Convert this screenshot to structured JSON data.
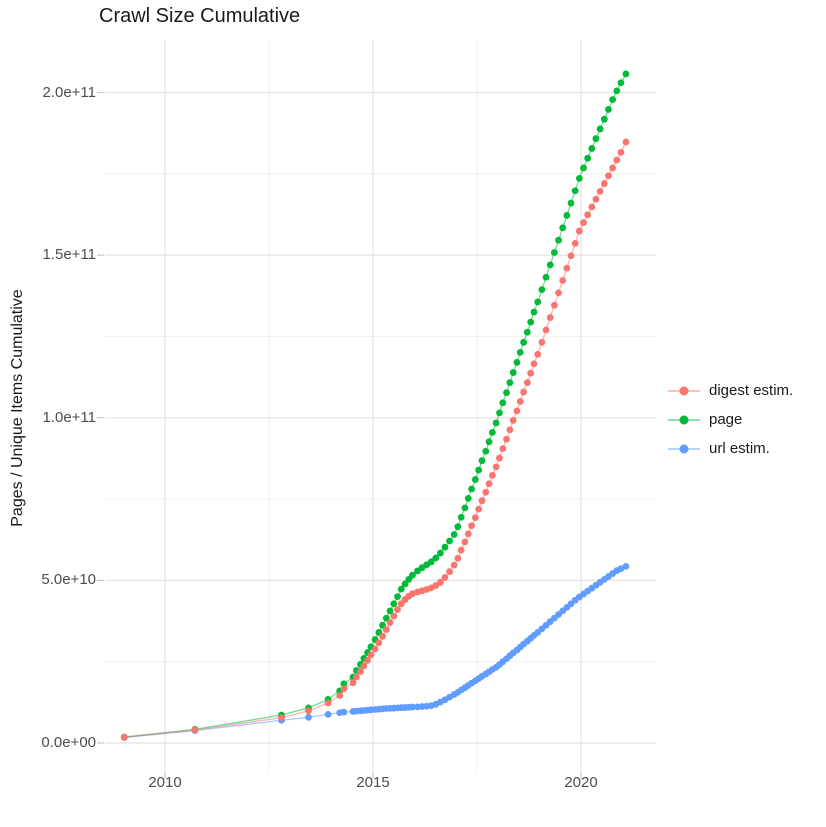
{
  "chart_data": {
    "type": "scatter",
    "title": "Crawl Size Cumulative",
    "xlabel": "",
    "ylabel": "Pages / Unique Items Cumulative",
    "value_scale": "1e9",
    "grid": "major+minor",
    "legend_position": "right",
    "x_ticks": [
      {
        "value": 2010,
        "label": "2010"
      },
      {
        "value": 2015,
        "label": "2015"
      },
      {
        "value": 2020,
        "label": "2020"
      }
    ],
    "y_ticks": [
      {
        "value": 0,
        "label": "0.0e+00"
      },
      {
        "value": 50,
        "label": "5.0e+10"
      },
      {
        "value": 100,
        "label": "1.0e+11"
      },
      {
        "value": 150,
        "label": "1.5e+11"
      },
      {
        "value": 200,
        "label": "2.0e+11"
      }
    ],
    "x_minor_ticks": [
      2012.5,
      2017.5
    ],
    "y_minor_ticks": [
      25,
      75,
      125,
      175
    ],
    "xlim": [
      2008.6,
      2021.8
    ],
    "ylim": [
      -9,
      216
    ],
    "series": [
      {
        "name": "digest estim.",
        "color": "#F8766D",
        "points": [
          [
            2009.02,
            1.8
          ],
          [
            2010.72,
            4.0
          ],
          [
            2012.8,
            7.8
          ],
          [
            2013.45,
            9.9
          ],
          [
            2013.92,
            12.3
          ],
          [
            2014.2,
            14.6
          ],
          [
            2014.3,
            16.6
          ],
          [
            2014.52,
            18.5
          ],
          [
            2014.6,
            20.3
          ],
          [
            2014.7,
            22.0
          ],
          [
            2014.78,
            23.7
          ],
          [
            2014.87,
            25.4
          ],
          [
            2014.95,
            27.1
          ],
          [
            2015.05,
            28.9
          ],
          [
            2015.14,
            30.8
          ],
          [
            2015.23,
            32.8
          ],
          [
            2015.32,
            34.9
          ],
          [
            2015.41,
            37.0
          ],
          [
            2015.5,
            39.0
          ],
          [
            2015.59,
            41.0
          ],
          [
            2015.68,
            42.8
          ],
          [
            2015.77,
            44.1
          ],
          [
            2015.86,
            45.1
          ],
          [
            2015.95,
            45.9
          ],
          [
            2016.07,
            46.4
          ],
          [
            2016.18,
            46.8
          ],
          [
            2016.29,
            47.2
          ],
          [
            2016.4,
            47.7
          ],
          [
            2016.51,
            48.4
          ],
          [
            2016.62,
            49.4
          ],
          [
            2016.73,
            50.9
          ],
          [
            2016.84,
            52.7
          ],
          [
            2016.95,
            54.7
          ],
          [
            2017.04,
            56.8
          ],
          [
            2017.12,
            59.3
          ],
          [
            2017.21,
            61.8
          ],
          [
            2017.29,
            64.3
          ],
          [
            2017.37,
            66.8
          ],
          [
            2017.46,
            69.3
          ],
          [
            2017.54,
            71.9
          ],
          [
            2017.62,
            74.5
          ],
          [
            2017.71,
            77.1
          ],
          [
            2017.79,
            79.7
          ],
          [
            2017.87,
            82.3
          ],
          [
            2017.96,
            84.9
          ],
          [
            2018.04,
            87.6
          ],
          [
            2018.12,
            90.5
          ],
          [
            2018.21,
            93.4
          ],
          [
            2018.29,
            96.3
          ],
          [
            2018.37,
            99.2
          ],
          [
            2018.46,
            102.1
          ],
          [
            2018.54,
            105.0
          ],
          [
            2018.62,
            107.9
          ],
          [
            2018.71,
            110.8
          ],
          [
            2018.79,
            113.7
          ],
          [
            2018.87,
            116.6
          ],
          [
            2018.96,
            119.5
          ],
          [
            2019.06,
            123.2
          ],
          [
            2019.16,
            127.0
          ],
          [
            2019.26,
            130.8
          ],
          [
            2019.36,
            134.6
          ],
          [
            2019.46,
            138.4
          ],
          [
            2019.56,
            142.2
          ],
          [
            2019.66,
            146.0
          ],
          [
            2019.76,
            149.8
          ],
          [
            2019.86,
            153.6
          ],
          [
            2019.96,
            157.4
          ],
          [
            2020.06,
            160.0
          ],
          [
            2020.16,
            162.4
          ],
          [
            2020.26,
            164.8
          ],
          [
            2020.36,
            167.2
          ],
          [
            2020.46,
            169.6
          ],
          [
            2020.56,
            172.0
          ],
          [
            2020.66,
            174.4
          ],
          [
            2020.76,
            176.8
          ],
          [
            2020.86,
            179.2
          ],
          [
            2020.96,
            181.6
          ],
          [
            2021.08,
            184.8
          ]
        ]
      },
      {
        "name": "page",
        "color": "#00BA38",
        "points": [
          [
            2009.02,
            1.8
          ],
          [
            2010.72,
            4.2
          ],
          [
            2012.8,
            8.6
          ],
          [
            2013.45,
            10.8
          ],
          [
            2013.92,
            13.4
          ],
          [
            2014.2,
            16.0
          ],
          [
            2014.3,
            18.2
          ],
          [
            2014.52,
            20.3
          ],
          [
            2014.6,
            22.3
          ],
          [
            2014.7,
            24.2
          ],
          [
            2014.78,
            26.0
          ],
          [
            2014.87,
            27.8
          ],
          [
            2014.95,
            29.6
          ],
          [
            2015.05,
            31.8
          ],
          [
            2015.14,
            34.0
          ],
          [
            2015.23,
            36.2
          ],
          [
            2015.32,
            38.4
          ],
          [
            2015.41,
            40.6
          ],
          [
            2015.5,
            42.8
          ],
          [
            2015.59,
            45.0
          ],
          [
            2015.68,
            47.3
          ],
          [
            2015.77,
            48.9
          ],
          [
            2015.86,
            50.3
          ],
          [
            2015.95,
            51.6
          ],
          [
            2016.07,
            52.9
          ],
          [
            2016.18,
            53.9
          ],
          [
            2016.29,
            54.8
          ],
          [
            2016.4,
            55.7
          ],
          [
            2016.51,
            56.9
          ],
          [
            2016.62,
            58.4
          ],
          [
            2016.73,
            60.2
          ],
          [
            2016.84,
            62.1
          ],
          [
            2016.95,
            64.1
          ],
          [
            2017.04,
            66.5
          ],
          [
            2017.12,
            69.4
          ],
          [
            2017.21,
            72.3
          ],
          [
            2017.29,
            75.2
          ],
          [
            2017.37,
            78.1
          ],
          [
            2017.46,
            81.0
          ],
          [
            2017.54,
            83.9
          ],
          [
            2017.62,
            86.8
          ],
          [
            2017.71,
            89.7
          ],
          [
            2017.79,
            92.6
          ],
          [
            2017.87,
            95.5
          ],
          [
            2017.96,
            98.4
          ],
          [
            2018.04,
            101.5
          ],
          [
            2018.12,
            104.6
          ],
          [
            2018.21,
            107.7
          ],
          [
            2018.29,
            110.8
          ],
          [
            2018.37,
            113.9
          ],
          [
            2018.46,
            117.0
          ],
          [
            2018.54,
            120.1
          ],
          [
            2018.62,
            123.2
          ],
          [
            2018.71,
            126.3
          ],
          [
            2018.79,
            129.4
          ],
          [
            2018.87,
            132.5
          ],
          [
            2018.96,
            135.6
          ],
          [
            2019.06,
            139.4
          ],
          [
            2019.16,
            143.2
          ],
          [
            2019.26,
            147.0
          ],
          [
            2019.36,
            150.8
          ],
          [
            2019.46,
            154.6
          ],
          [
            2019.56,
            158.4
          ],
          [
            2019.66,
            162.2
          ],
          [
            2019.76,
            166.0
          ],
          [
            2019.86,
            169.8
          ],
          [
            2019.96,
            173.6
          ],
          [
            2020.06,
            176.8
          ],
          [
            2020.16,
            179.8
          ],
          [
            2020.26,
            182.8
          ],
          [
            2020.36,
            185.8
          ],
          [
            2020.46,
            188.8
          ],
          [
            2020.56,
            191.8
          ],
          [
            2020.66,
            194.8
          ],
          [
            2020.76,
            197.8
          ],
          [
            2020.86,
            200.5
          ],
          [
            2020.96,
            203.0
          ],
          [
            2021.08,
            205.7
          ]
        ]
      },
      {
        "name": "url estim.",
        "color": "#619CFF",
        "points": [
          [
            2009.02,
            1.7
          ],
          [
            2010.72,
            3.8
          ],
          [
            2012.8,
            7.0
          ],
          [
            2013.45,
            7.9
          ],
          [
            2013.92,
            8.8
          ],
          [
            2014.2,
            9.3
          ],
          [
            2014.3,
            9.5
          ],
          [
            2014.52,
            9.7
          ],
          [
            2014.6,
            9.8
          ],
          [
            2014.7,
            9.9
          ],
          [
            2014.78,
            10.0
          ],
          [
            2014.87,
            10.1
          ],
          [
            2014.95,
            10.2
          ],
          [
            2015.05,
            10.3
          ],
          [
            2015.14,
            10.4
          ],
          [
            2015.23,
            10.5
          ],
          [
            2015.32,
            10.6
          ],
          [
            2015.41,
            10.65
          ],
          [
            2015.5,
            10.7
          ],
          [
            2015.59,
            10.8
          ],
          [
            2015.68,
            10.85
          ],
          [
            2015.77,
            10.9
          ],
          [
            2015.86,
            11.0
          ],
          [
            2015.95,
            11.05
          ],
          [
            2016.07,
            11.1
          ],
          [
            2016.18,
            11.2
          ],
          [
            2016.29,
            11.3
          ],
          [
            2016.4,
            11.5
          ],
          [
            2016.51,
            11.9
          ],
          [
            2016.62,
            12.6
          ],
          [
            2016.73,
            13.3
          ],
          [
            2016.84,
            14.1
          ],
          [
            2016.95,
            14.9
          ],
          [
            2017.04,
            15.6
          ],
          [
            2017.12,
            16.3
          ],
          [
            2017.21,
            17.0
          ],
          [
            2017.29,
            17.7
          ],
          [
            2017.37,
            18.4
          ],
          [
            2017.46,
            19.1
          ],
          [
            2017.54,
            19.8
          ],
          [
            2017.62,
            20.5
          ],
          [
            2017.71,
            21.2
          ],
          [
            2017.79,
            21.9
          ],
          [
            2017.87,
            22.6
          ],
          [
            2017.96,
            23.3
          ],
          [
            2018.04,
            24.1
          ],
          [
            2018.12,
            25.0
          ],
          [
            2018.21,
            25.9
          ],
          [
            2018.29,
            26.8
          ],
          [
            2018.37,
            27.7
          ],
          [
            2018.46,
            28.6
          ],
          [
            2018.54,
            29.5
          ],
          [
            2018.62,
            30.4
          ],
          [
            2018.71,
            31.3
          ],
          [
            2018.79,
            32.2
          ],
          [
            2018.87,
            33.1
          ],
          [
            2018.96,
            34.0
          ],
          [
            2019.06,
            35.1
          ],
          [
            2019.16,
            36.2
          ],
          [
            2019.26,
            37.3
          ],
          [
            2019.36,
            38.4
          ],
          [
            2019.46,
            39.5
          ],
          [
            2019.56,
            40.6
          ],
          [
            2019.66,
            41.7
          ],
          [
            2019.76,
            42.8
          ],
          [
            2019.86,
            43.9
          ],
          [
            2019.96,
            44.9
          ],
          [
            2020.06,
            45.8
          ],
          [
            2020.16,
            46.7
          ],
          [
            2020.26,
            47.6
          ],
          [
            2020.36,
            48.5
          ],
          [
            2020.46,
            49.4
          ],
          [
            2020.56,
            50.3
          ],
          [
            2020.66,
            51.2
          ],
          [
            2020.76,
            52.1
          ],
          [
            2020.86,
            53.0
          ],
          [
            2020.96,
            53.6
          ],
          [
            2021.08,
            54.3
          ]
        ]
      }
    ]
  },
  "style": {
    "grid_major_color": "#e4e4e4",
    "grid_minor_color": "#f0f0f0",
    "tick_color": "#c9c9c9",
    "axis_text_color": "#4d4d4d"
  }
}
